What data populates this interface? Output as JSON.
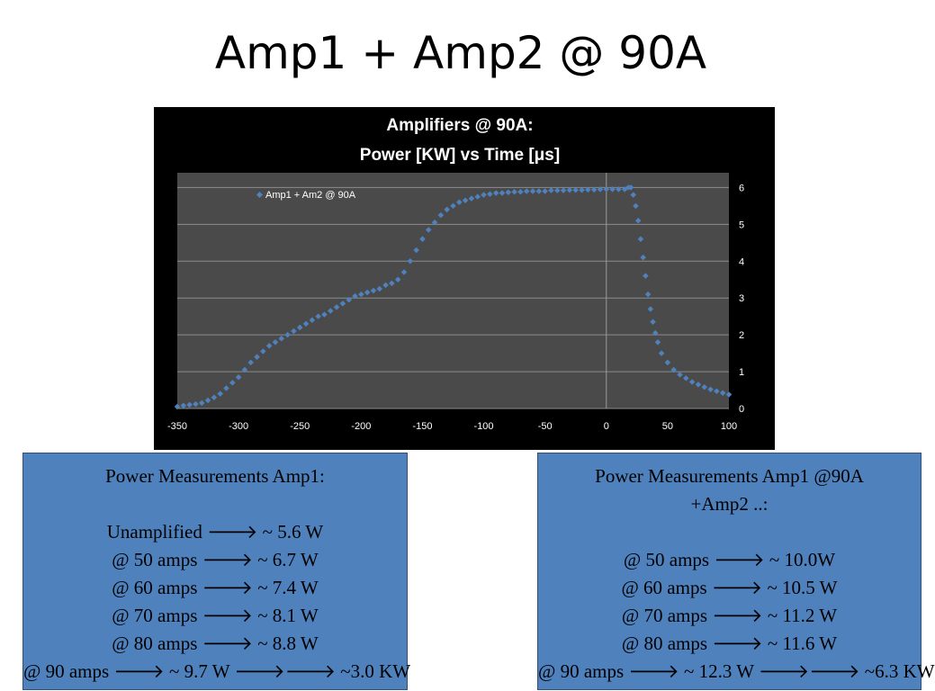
{
  "slide": {
    "title": "Amp1 + Amp2 @ 90A"
  },
  "chart_data": {
    "type": "scatter",
    "title_line1": "Amplifiers @ 90A:",
    "title_line2": "Power [KW] vs Time [μs]",
    "xlim": [
      -350,
      100
    ],
    "ylim": [
      0,
      6.4
    ],
    "x_ticks": [
      "-350",
      "-300",
      "-250",
      "-200",
      "-150",
      "-100",
      "-50",
      "0",
      "50",
      "100"
    ],
    "y_ticks": [
      "0",
      "1",
      "2",
      "3",
      "4",
      "5",
      "6"
    ],
    "y_axis_position": "right",
    "grid": "horizontal",
    "legend_position": "top-left",
    "series": [
      {
        "name": "Amp1 + Am2 @ 90A",
        "color": "#4f81bd",
        "points": [
          [
            -350,
            0.05
          ],
          [
            -345,
            0.08
          ],
          [
            -340,
            0.1
          ],
          [
            -335,
            0.12
          ],
          [
            -330,
            0.15
          ],
          [
            -325,
            0.22
          ],
          [
            -320,
            0.3
          ],
          [
            -315,
            0.4
          ],
          [
            -310,
            0.55
          ],
          [
            -305,
            0.7
          ],
          [
            -300,
            0.85
          ],
          [
            -295,
            1.05
          ],
          [
            -290,
            1.25
          ],
          [
            -285,
            1.4
          ],
          [
            -280,
            1.55
          ],
          [
            -275,
            1.7
          ],
          [
            -270,
            1.8
          ],
          [
            -265,
            1.9
          ],
          [
            -260,
            2.0
          ],
          [
            -255,
            2.1
          ],
          [
            -250,
            2.2
          ],
          [
            -245,
            2.3
          ],
          [
            -240,
            2.4
          ],
          [
            -235,
            2.5
          ],
          [
            -230,
            2.55
          ],
          [
            -225,
            2.65
          ],
          [
            -220,
            2.75
          ],
          [
            -215,
            2.85
          ],
          [
            -210,
            2.95
          ],
          [
            -205,
            3.05
          ],
          [
            -200,
            3.1
          ],
          [
            -195,
            3.15
          ],
          [
            -190,
            3.2
          ],
          [
            -185,
            3.25
          ],
          [
            -180,
            3.35
          ],
          [
            -175,
            3.4
          ],
          [
            -170,
            3.5
          ],
          [
            -165,
            3.7
          ],
          [
            -160,
            4.0
          ],
          [
            -155,
            4.3
          ],
          [
            -150,
            4.6
          ],
          [
            -145,
            4.85
          ],
          [
            -140,
            5.05
          ],
          [
            -135,
            5.25
          ],
          [
            -130,
            5.4
          ],
          [
            -125,
            5.5
          ],
          [
            -120,
            5.6
          ],
          [
            -115,
            5.65
          ],
          [
            -110,
            5.7
          ],
          [
            -105,
            5.75
          ],
          [
            -100,
            5.8
          ],
          [
            -95,
            5.82
          ],
          [
            -90,
            5.85
          ],
          [
            -85,
            5.85
          ],
          [
            -80,
            5.87
          ],
          [
            -75,
            5.88
          ],
          [
            -70,
            5.88
          ],
          [
            -65,
            5.9
          ],
          [
            -60,
            5.9
          ],
          [
            -55,
            5.9
          ],
          [
            -50,
            5.9
          ],
          [
            -45,
            5.92
          ],
          [
            -40,
            5.92
          ],
          [
            -35,
            5.92
          ],
          [
            -30,
            5.93
          ],
          [
            -25,
            5.93
          ],
          [
            -20,
            5.93
          ],
          [
            -15,
            5.94
          ],
          [
            -10,
            5.94
          ],
          [
            -5,
            5.95
          ],
          [
            0,
            5.95
          ],
          [
            5,
            5.95
          ],
          [
            10,
            5.95
          ],
          [
            15,
            5.95
          ],
          [
            18,
            6.0
          ],
          [
            20,
            6.0
          ],
          [
            22,
            5.8
          ],
          [
            24,
            5.5
          ],
          [
            26,
            5.1
          ],
          [
            28,
            4.6
          ],
          [
            30,
            4.1
          ],
          [
            32,
            3.6
          ],
          [
            34,
            3.1
          ],
          [
            36,
            2.7
          ],
          [
            38,
            2.35
          ],
          [
            40,
            2.05
          ],
          [
            42,
            1.8
          ],
          [
            45,
            1.5
          ],
          [
            50,
            1.25
          ],
          [
            55,
            1.05
          ],
          [
            60,
            0.92
          ],
          [
            65,
            0.82
          ],
          [
            70,
            0.72
          ],
          [
            75,
            0.65
          ],
          [
            80,
            0.58
          ],
          [
            85,
            0.52
          ],
          [
            90,
            0.47
          ],
          [
            95,
            0.42
          ],
          [
            100,
            0.38
          ]
        ]
      }
    ]
  },
  "box_left": {
    "heading": "Power Measurements Amp1:",
    "rows": [
      "Unamplified 🡒 ~ 5.6 W",
      "@ 50 amps 🡒 ~ 6.7 W",
      "@ 60 amps 🡒 ~ 7.4 W",
      "@ 70 amps 🡒 ~ 8.1 W",
      "@ 80 amps 🡒 ~ 8.8 W",
      "@ 90 amps 🡒 ~ 9.7 W 🡒🡒 ~3.0 KW"
    ]
  },
  "box_right": {
    "heading_line1": "Power Measurements Amp1 @90A",
    "heading_line2": "+Amp2 ..:",
    "rows": [
      "@ 50 amps 🡒 ~ 10.0W",
      "@ 60 amps 🡒 ~  10.5 W",
      "@ 70 amps 🡒 ~ 11.2 W",
      "@ 80 amps 🡒 ~ 11.6 W",
      "@ 90 amps 🡒 ~ 12.3 W 🡒🡒 ~6.3 KW"
    ]
  }
}
